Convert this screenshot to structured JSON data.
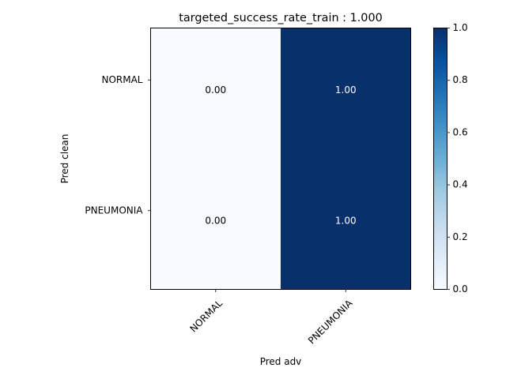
{
  "chart_data": {
    "type": "heatmap",
    "title": "targeted_success_rate_train : 1.000",
    "xlabel": "Pred adv",
    "ylabel": "Pred clean",
    "x_categories": [
      "NORMAL",
      "PNEUMONIA"
    ],
    "y_categories": [
      "NORMAL",
      "PNEUMONIA"
    ],
    "values": [
      [
        0.0,
        1.0
      ],
      [
        0.0,
        1.0
      ]
    ],
    "cell_labels": [
      [
        "0.00",
        "1.00"
      ],
      [
        "0.00",
        "1.00"
      ]
    ],
    "colormap": "Blues",
    "colors": {
      "low": "#f7fbff",
      "high": "#08306b",
      "text_on_dark": "#ffffff",
      "text_on_light": "#000000"
    },
    "colorbar": {
      "range": [
        0.0,
        1.0
      ],
      "ticks": [
        "0.0",
        "0.2",
        "0.4",
        "0.6",
        "0.8",
        "1.0"
      ]
    },
    "grid": false
  }
}
